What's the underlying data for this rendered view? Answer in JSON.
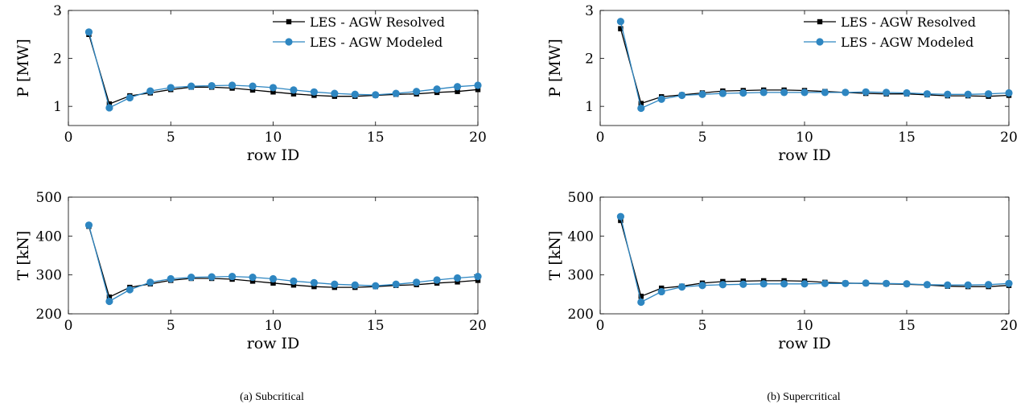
{
  "chart_data": [
    {
      "type": "line",
      "panel": "a",
      "xlabel": "row ID",
      "ylabel": "P [MW]",
      "xlim": [
        0,
        20
      ],
      "ylim": [
        0.6,
        3
      ],
      "xticks": [
        0,
        5,
        10,
        15,
        20
      ],
      "yticks": [
        1,
        2,
        3
      ],
      "grid": false,
      "legend": "top-right",
      "x": [
        1,
        2,
        3,
        4,
        5,
        6,
        7,
        8,
        9,
        10,
        11,
        12,
        13,
        14,
        15,
        16,
        17,
        18,
        19,
        20
      ],
      "series": [
        {
          "name": "LES - AGW Resolved",
          "color": "#000000",
          "marker": "square",
          "values": [
            2.5,
            1.05,
            1.22,
            1.28,
            1.35,
            1.4,
            1.4,
            1.38,
            1.34,
            1.3,
            1.26,
            1.23,
            1.21,
            1.21,
            1.23,
            1.25,
            1.26,
            1.29,
            1.31,
            1.35
          ]
        },
        {
          "name": "LES - AGW Modeled",
          "color": "#2e86c1",
          "marker": "circle",
          "values": [
            2.55,
            0.97,
            1.18,
            1.32,
            1.39,
            1.42,
            1.43,
            1.44,
            1.42,
            1.39,
            1.34,
            1.3,
            1.27,
            1.25,
            1.24,
            1.27,
            1.31,
            1.36,
            1.41,
            1.44
          ]
        }
      ]
    },
    {
      "type": "line",
      "panel": "b",
      "xlabel": "row ID",
      "ylabel": "P [MW]",
      "xlim": [
        0,
        20
      ],
      "ylim": [
        0.6,
        3
      ],
      "xticks": [
        0,
        5,
        10,
        15,
        20
      ],
      "yticks": [
        1,
        2,
        3
      ],
      "grid": false,
      "legend": "top-right",
      "x": [
        1,
        2,
        3,
        4,
        5,
        6,
        7,
        8,
        9,
        10,
        11,
        12,
        13,
        14,
        15,
        16,
        17,
        18,
        19,
        20
      ],
      "series": [
        {
          "name": "LES - AGW Resolved",
          "color": "#000000",
          "marker": "square",
          "values": [
            2.62,
            1.06,
            1.2,
            1.24,
            1.28,
            1.32,
            1.33,
            1.34,
            1.34,
            1.33,
            1.31,
            1.29,
            1.27,
            1.26,
            1.26,
            1.24,
            1.22,
            1.22,
            1.21,
            1.23
          ]
        },
        {
          "name": "LES - AGW Modeled",
          "color": "#2e86c1",
          "marker": "circle",
          "values": [
            2.77,
            0.96,
            1.15,
            1.23,
            1.25,
            1.27,
            1.28,
            1.29,
            1.29,
            1.29,
            1.29,
            1.29,
            1.3,
            1.29,
            1.28,
            1.26,
            1.25,
            1.25,
            1.26,
            1.28
          ]
        }
      ]
    },
    {
      "type": "line",
      "panel": "a",
      "xlabel": "row ID",
      "ylabel": "T [kN]",
      "xlim": [
        0,
        20
      ],
      "ylim": [
        200,
        500
      ],
      "xticks": [
        0,
        5,
        10,
        15,
        20
      ],
      "yticks": [
        200,
        300,
        400,
        500
      ],
      "grid": false,
      "x": [
        1,
        2,
        3,
        4,
        5,
        6,
        7,
        8,
        9,
        10,
        11,
        12,
        13,
        14,
        15,
        16,
        17,
        18,
        19,
        20
      ],
      "series": [
        {
          "name": "LES - AGW Resolved",
          "color": "#000000",
          "marker": "square",
          "values": [
            425,
            243,
            268,
            277,
            286,
            291,
            291,
            289,
            284,
            279,
            274,
            270,
            268,
            268,
            270,
            273,
            275,
            279,
            282,
            286
          ]
        },
        {
          "name": "LES - AGW Modeled",
          "color": "#2e86c1",
          "marker": "circle",
          "values": [
            428,
            232,
            262,
            281,
            290,
            294,
            295,
            296,
            294,
            290,
            284,
            280,
            276,
            274,
            272,
            276,
            281,
            287,
            292,
            296
          ]
        }
      ]
    },
    {
      "type": "line",
      "panel": "b",
      "xlabel": "row ID",
      "ylabel": "T [kN]",
      "xlim": [
        0,
        20
      ],
      "ylim": [
        200,
        500
      ],
      "xticks": [
        0,
        5,
        10,
        15,
        20
      ],
      "yticks": [
        200,
        300,
        400,
        500
      ],
      "grid": false,
      "x": [
        1,
        2,
        3,
        4,
        5,
        6,
        7,
        8,
        9,
        10,
        11,
        12,
        13,
        14,
        15,
        16,
        17,
        18,
        19,
        20
      ],
      "series": [
        {
          "name": "LES - AGW Resolved",
          "color": "#000000",
          "marker": "square",
          "values": [
            440,
            245,
            266,
            271,
            279,
            283,
            284,
            285,
            285,
            284,
            281,
            279,
            278,
            277,
            276,
            274,
            271,
            270,
            270,
            273
          ]
        },
        {
          "name": "LES - AGW Modeled",
          "color": "#2e86c1",
          "marker": "circle",
          "values": [
            450,
            230,
            257,
            269,
            273,
            275,
            276,
            277,
            277,
            277,
            278,
            278,
            279,
            278,
            277,
            275,
            274,
            274,
            275,
            278
          ]
        }
      ]
    }
  ],
  "captions": {
    "left": "(a) Subcritical",
    "right": "(b) Supercritical"
  }
}
